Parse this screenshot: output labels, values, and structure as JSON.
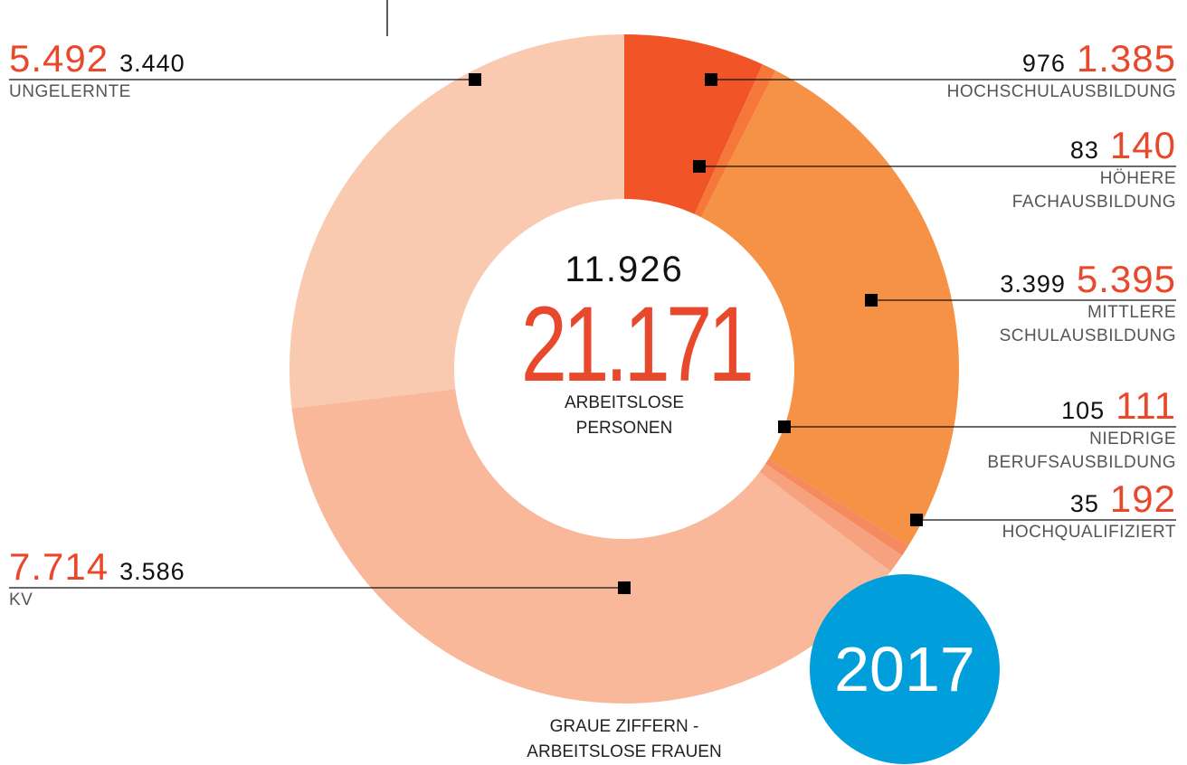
{
  "chart_data": {
    "type": "donut",
    "categories": [
      "HOCHSCHULAUSBILDUNG",
      "HÖHERE FACHAUSBILDUNG",
      "MITTLERE SCHULAUSBILDUNG",
      "NIEDRIGE BERUFSAUSBILDUNG",
      "HOCHQUALIFIZIERT",
      "KV",
      "UNGELERNTE"
    ],
    "values": [
      1385,
      140,
      5395,
      111,
      192,
      7714,
      5492
    ],
    "value_labels": [
      "1.385",
      "140",
      "5.395",
      "111",
      "192",
      "7.714",
      "5.492"
    ],
    "women_values": [
      976,
      83,
      3399,
      105,
      35,
      3586,
      3440
    ],
    "women_labels": [
      "976",
      "83",
      "3.399",
      "105",
      "35",
      "3.586",
      "3.440"
    ],
    "colors": [
      "#f05427",
      "#f5773a",
      "#f59246",
      "#f48a5e",
      "#f6a27e",
      "#f8b899",
      "#f9c9b0"
    ],
    "total": 21171,
    "total_label": "21.171",
    "women_total": 11926,
    "women_total_label": "11.926",
    "center_text": "ARBEITSLOSE PERSONEN",
    "note": "GRAUE ZIFFERN - ARBEITSLOSE FRAUEN",
    "year": "2017"
  }
}
